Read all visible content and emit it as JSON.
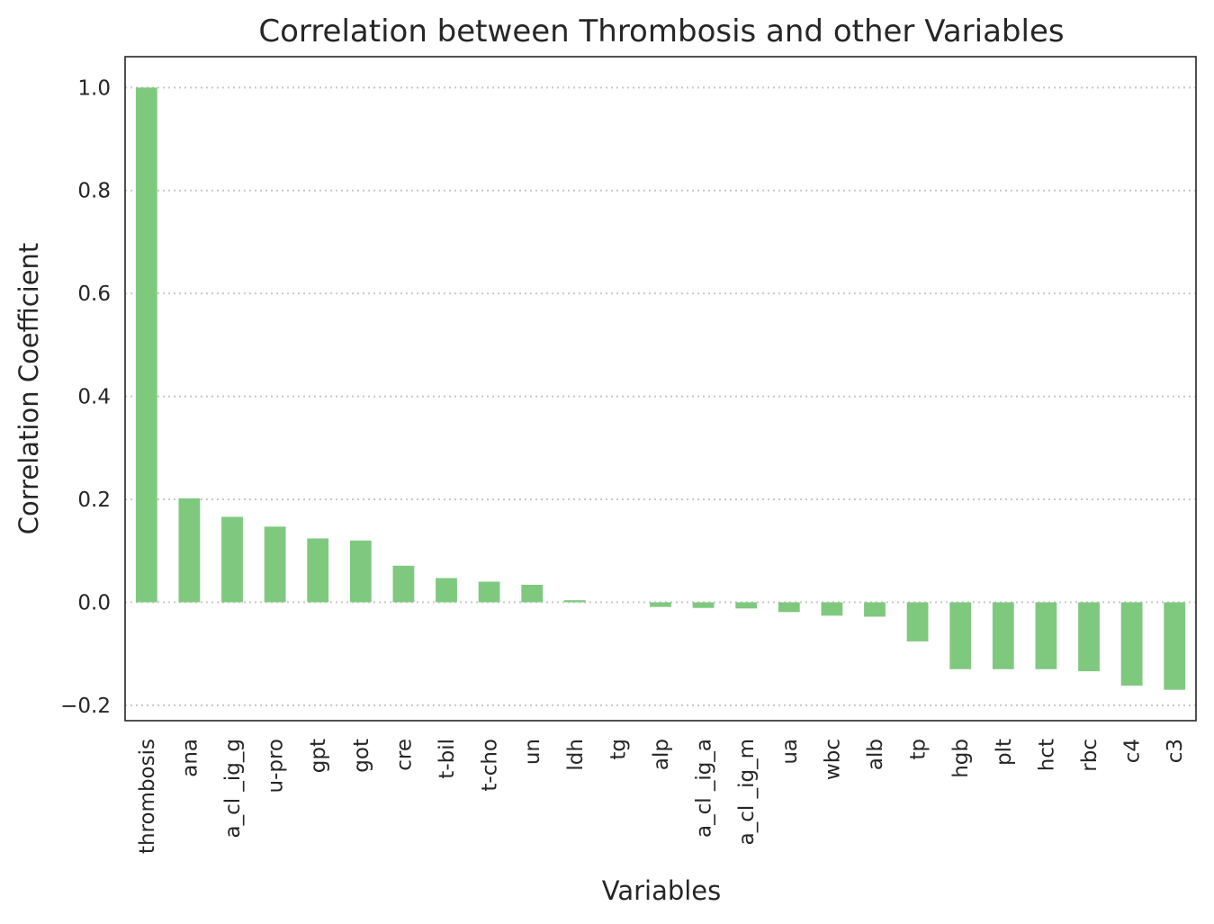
{
  "chart_data": {
    "type": "bar",
    "title": "Correlation between Thrombosis and other Variables",
    "xlabel": "Variables",
    "ylabel": "Correlation Coefficient",
    "ylim": [
      -0.23,
      1.06
    ],
    "yticks": [
      -0.2,
      0.0,
      0.2,
      0.4,
      0.6,
      0.8,
      1.0
    ],
    "ytick_labels": [
      "−0.2",
      "0.0",
      "0.2",
      "0.4",
      "0.6",
      "0.8",
      "1.0"
    ],
    "grid": "horizontal dotted",
    "bar_color": "#7fc97f",
    "categories": [
      "thrombosis",
      "ana",
      "a_cl _ig_g",
      "u-pro",
      "gpt",
      "got",
      "cre",
      "t-bil",
      "t-cho",
      "un",
      "ldh",
      "tg",
      "alp",
      "a_cl _ig_a",
      "a_cl _ig_m",
      "ua",
      "wbc",
      "alb",
      "tp",
      "hgb",
      "plt",
      "hct",
      "rbc",
      "c4",
      "c3"
    ],
    "values": [
      1.0,
      0.202,
      0.166,
      0.147,
      0.124,
      0.12,
      0.071,
      0.047,
      0.04,
      0.034,
      0.004,
      0.0,
      -0.009,
      -0.011,
      -0.012,
      -0.019,
      -0.026,
      -0.028,
      -0.076,
      -0.13,
      -0.13,
      -0.13,
      -0.134,
      -0.162,
      -0.17
    ]
  }
}
